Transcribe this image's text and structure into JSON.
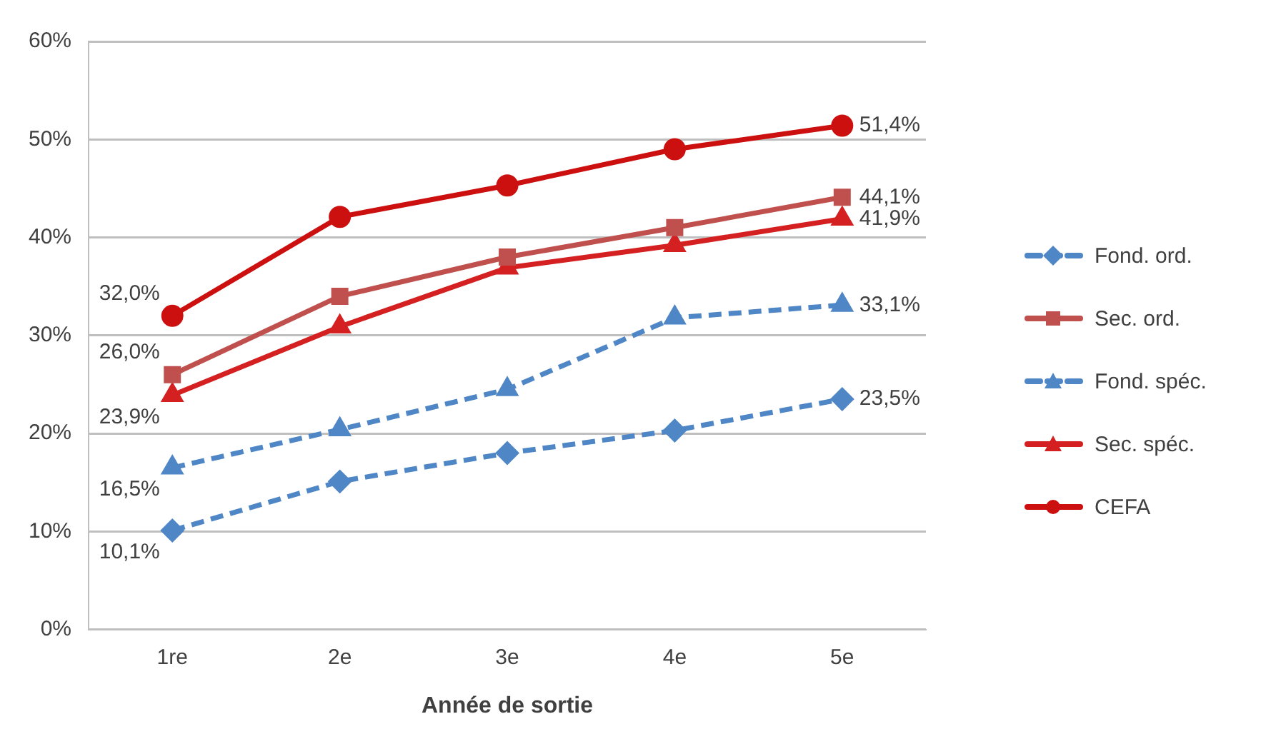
{
  "chart_data": {
    "type": "line",
    "xlabel": "Année de sortie",
    "categories": [
      "1re",
      "2e",
      "3e",
      "4e",
      "5e"
    ],
    "ylim": [
      0,
      60
    ],
    "yticks": [
      {
        "value": 0,
        "label": "0%"
      },
      {
        "value": 10,
        "label": "10%"
      },
      {
        "value": 20,
        "label": "20%"
      },
      {
        "value": 30,
        "label": "30%"
      },
      {
        "value": 40,
        "label": "40%"
      },
      {
        "value": 50,
        "label": "50%"
      },
      {
        "value": 60,
        "label": "60%"
      }
    ],
    "grid": "y",
    "legend": "right",
    "series": [
      {
        "name": "Fond. ord.",
        "color": "#4f86c6",
        "marker": "diamond",
        "line_style": "dashed",
        "values": [
          10.1,
          15.1,
          18.0,
          20.3,
          23.5
        ],
        "value_labels": [
          "10,1%",
          null,
          null,
          null,
          "23,5%"
        ]
      },
      {
        "name": "Sec. ord.",
        "color": "#c0504d",
        "marker": "square",
        "line_style": "solid",
        "values": [
          26.0,
          34.0,
          38.0,
          41.0,
          44.1
        ],
        "value_labels": [
          "26,0%",
          null,
          null,
          null,
          "44,1%"
        ]
      },
      {
        "name": "Fond. spéc.",
        "color": "#4f86c6",
        "marker": "triangle",
        "line_style": "dashed",
        "values": [
          16.5,
          20.4,
          24.5,
          31.8,
          33.1
        ],
        "value_labels": [
          "16,5%",
          null,
          null,
          null,
          "33,1%"
        ]
      },
      {
        "name": "Sec. spéc.",
        "color": "#d42020",
        "marker": "triangle",
        "line_style": "solid",
        "values": [
          23.9,
          30.9,
          36.9,
          39.2,
          41.9
        ],
        "value_labels": [
          "23,9%",
          null,
          null,
          null,
          "41,9%"
        ]
      },
      {
        "name": "CEFA",
        "color": "#cc1010",
        "marker": "circle",
        "line_style": "solid",
        "values": [
          32.0,
          42.1,
          45.3,
          49.0,
          51.4
        ],
        "value_labels": [
          "32,0%",
          null,
          null,
          null,
          "51,4%"
        ]
      }
    ]
  }
}
